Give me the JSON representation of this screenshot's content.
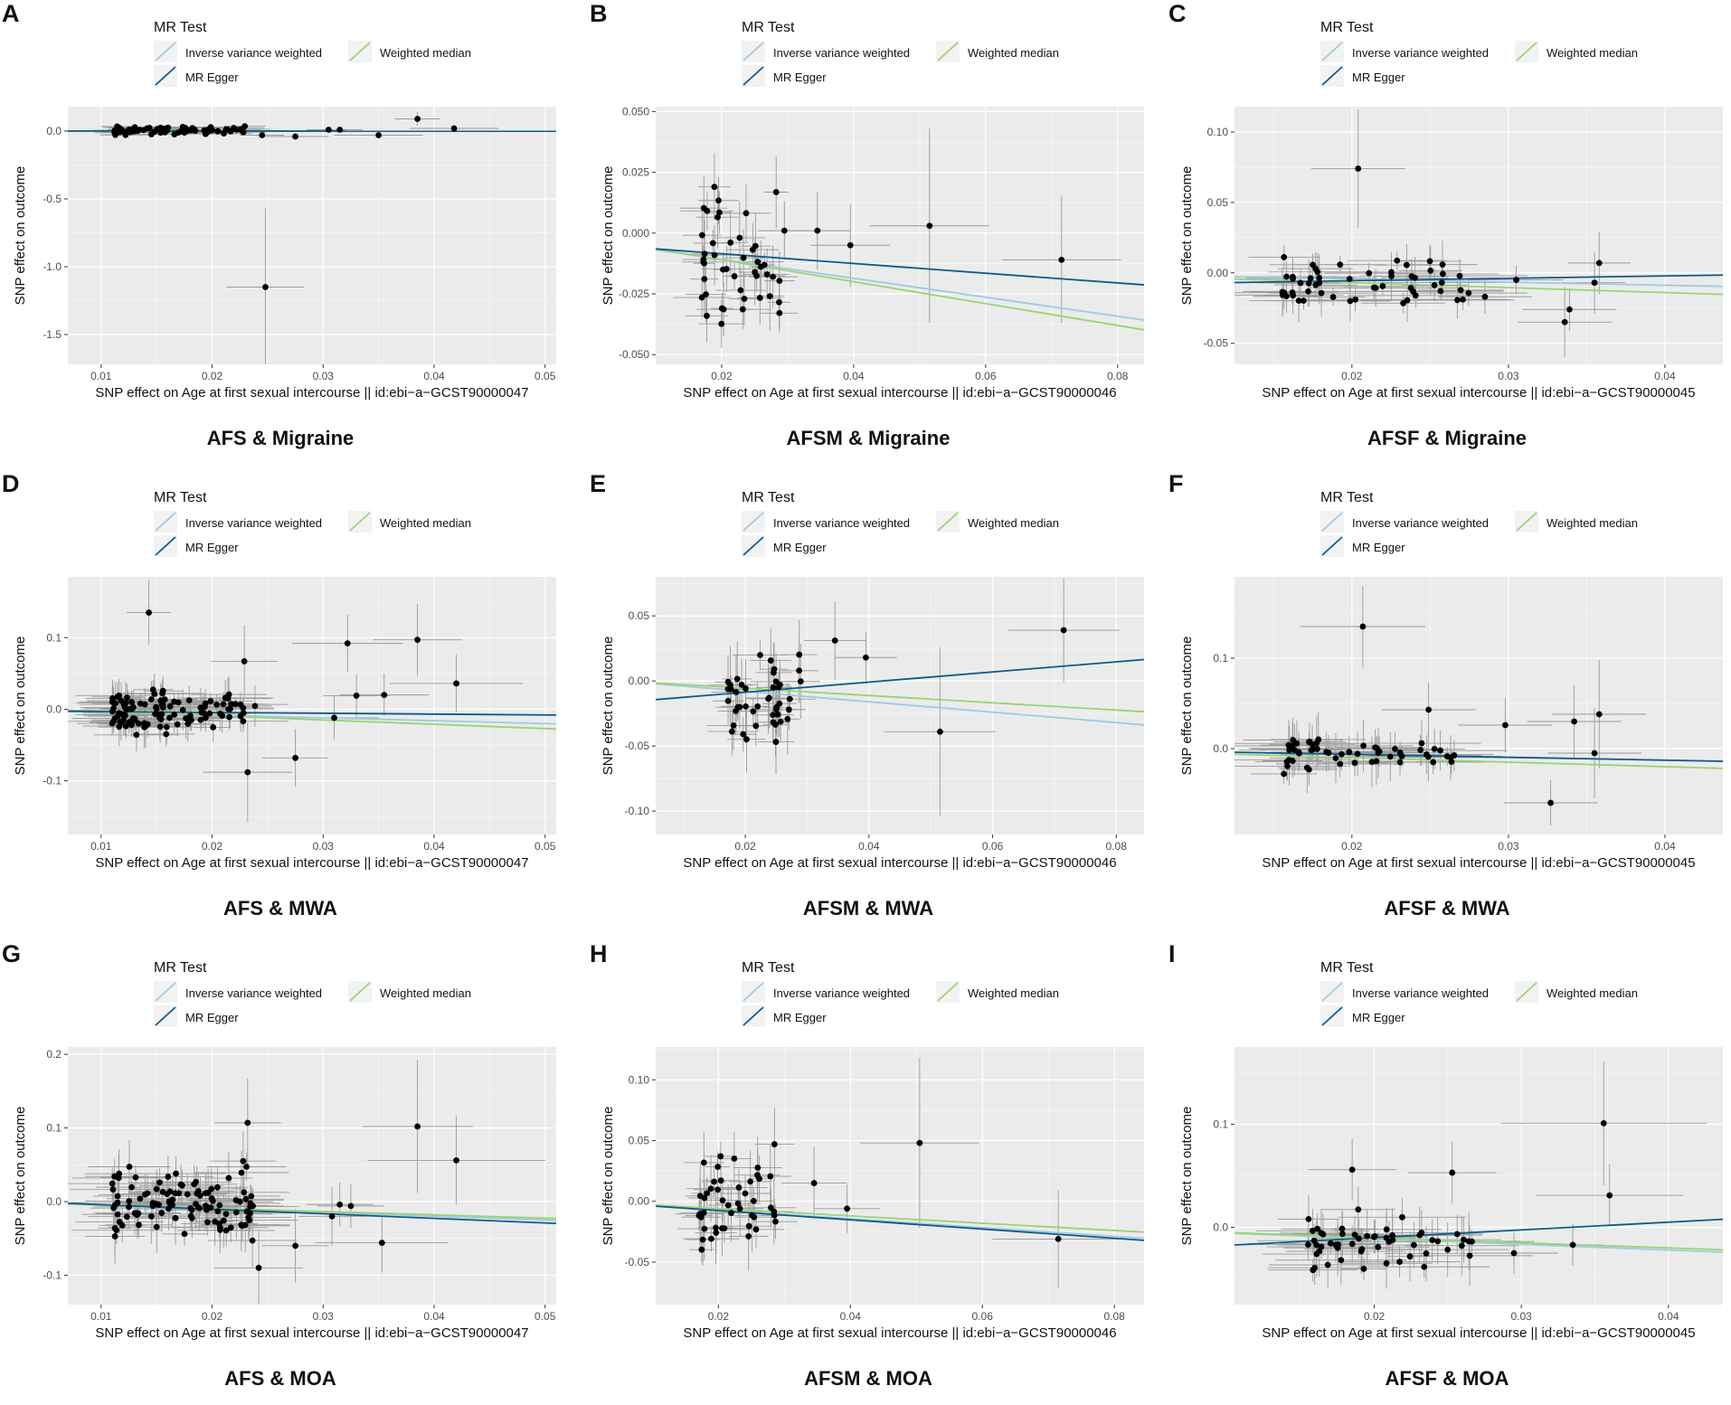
{
  "legend": {
    "title": "MR Test",
    "items": [
      {
        "label": "Inverse variance weighted",
        "color": "#9ecae1"
      },
      {
        "label": "Weighted median",
        "color": "#9ad372"
      },
      {
        "label": "MR Egger",
        "color": "#0e5a8a"
      }
    ]
  },
  "ylabel": "SNP effect on outcome",
  "colors": {
    "panel_bg": "#ebebeb",
    "grid": "#ffffff",
    "point": "#000000",
    "errorbar": "#9a9a9a"
  },
  "chart_data": [
    {
      "type": "scatter",
      "letter": "A",
      "caption": "AFS & Migraine",
      "xlabel": "SNP effect on Age at first sexual intercourse || id:ebi−a−GCST90000047",
      "xlim": [
        0.007,
        0.051
      ],
      "ylim": [
        -1.72,
        0.18
      ],
      "xticks": [
        0.01,
        0.02,
        0.03,
        0.04,
        0.05
      ],
      "xtick_labels": [
        "0.01",
        "0.02",
        "0.03",
        "0.04",
        "0.05"
      ],
      "yticks": [
        0.0,
        -0.5,
        -1.0,
        -1.5
      ],
      "ytick_labels": [
        "0.0",
        "-0.5",
        "-1.0",
        "-1.5"
      ],
      "lines": {
        "ivw": [
          0.0,
          -0.02
        ],
        "median": [
          0.0,
          -0.02
        ],
        "egger": [
          0.001,
          -0.03
        ]
      },
      "seed": 11,
      "cluster_n": 75,
      "cluster_x": [
        0.011,
        0.023
      ],
      "cluster_y": [
        -0.03,
        0.04
      ],
      "cluster_xerr": 0.002,
      "cluster_yerr": 0.02,
      "points": [
        {
          "x": 0.0248,
          "y": -1.15,
          "xe": 0.0035,
          "ye": 0.58
        },
        {
          "x": 0.0385,
          "y": 0.09,
          "xe": 0.002,
          "ye": 0.05
        },
        {
          "x": 0.0418,
          "y": 0.02,
          "xe": 0.004,
          "ye": 0.02
        },
        {
          "x": 0.035,
          "y": -0.03,
          "xe": 0.004,
          "ye": 0.02
        },
        {
          "x": 0.0315,
          "y": 0.01,
          "xe": 0.002,
          "ye": 0.02
        },
        {
          "x": 0.0305,
          "y": 0.01,
          "xe": 0.002,
          "ye": 0.02
        },
        {
          "x": 0.0275,
          "y": -0.04,
          "xe": 0.003,
          "ye": 0.02
        },
        {
          "x": 0.0245,
          "y": -0.03,
          "xe": 0.002,
          "ye": 0.02
        }
      ]
    },
    {
      "type": "scatter",
      "letter": "B",
      "caption": "AFSM & Migraine",
      "xlabel": "SNP effect on Age at first sexual intercourse || id:ebi−a−GCST90000046",
      "xlim": [
        0.01,
        0.084
      ],
      "ylim": [
        -0.054,
        0.052
      ],
      "xticks": [
        0.02,
        0.04,
        0.06,
        0.08
      ],
      "xtick_labels": [
        "0.02",
        "0.04",
        "0.06",
        "0.08"
      ],
      "yticks": [
        0.05,
        0.025,
        0.0,
        -0.025,
        -0.05
      ],
      "ytick_labels": [
        "0.050",
        "0.025",
        "0.000",
        "-0.025",
        "-0.050"
      ],
      "lines": {
        "ivw": [
          -0.003,
          -0.39
        ],
        "median": [
          -0.002,
          -0.45
        ],
        "egger": [
          -0.0045,
          -0.2
        ]
      },
      "seed": 22,
      "cluster_n": 45,
      "cluster_x": [
        0.017,
        0.029
      ],
      "cluster_y": [
        -0.04,
        0.022
      ],
      "cluster_xerr": 0.003,
      "cluster_yerr": 0.01,
      "points": [
        {
          "x": 0.0345,
          "y": 0.001,
          "xe": 0.005,
          "ye": 0.016
        },
        {
          "x": 0.0395,
          "y": -0.005,
          "xe": 0.006,
          "ye": 0.017
        },
        {
          "x": 0.0515,
          "y": 0.003,
          "xe": 0.009,
          "ye": 0.04
        },
        {
          "x": 0.0715,
          "y": -0.011,
          "xe": 0.009,
          "ye": 0.026
        },
        {
          "x": 0.0295,
          "y": 0.001,
          "xe": 0.004,
          "ye": 0.012
        }
      ]
    },
    {
      "type": "scatter",
      "letter": "C",
      "caption": "AFSF & Migraine",
      "xlabel": "SNP effect on Age at first sexual intercourse || id:ebi−a−GCST90000045",
      "xlim": [
        0.0125,
        0.0437
      ],
      "ylim": [
        -0.065,
        0.118
      ],
      "xticks": [
        0.02,
        0.03,
        0.04
      ],
      "xtick_labels": [
        "0.02",
        "0.03",
        "0.04"
      ],
      "yticks": [
        0.1,
        0.05,
        0.0,
        -0.05
      ],
      "ytick_labels": [
        "0.10",
        "0.05",
        "0.00",
        "-0.05"
      ],
      "lines": {
        "ivw": [
          0.0,
          -0.22
        ],
        "median": [
          0.0,
          -0.35
        ],
        "egger": [
          -0.009,
          0.17
        ]
      },
      "seed": 33,
      "cluster_n": 55,
      "cluster_x": [
        0.0155,
        0.0275
      ],
      "cluster_y": [
        -0.028,
        0.015
      ],
      "cluster_xerr": 0.003,
      "cluster_yerr": 0.012,
      "points": [
        {
          "x": 0.0204,
          "y": 0.074,
          "xe": 0.003,
          "ye": 0.042
        },
        {
          "x": 0.0336,
          "y": -0.035,
          "xe": 0.003,
          "ye": 0.025
        },
        {
          "x": 0.0339,
          "y": -0.026,
          "xe": 0.003,
          "ye": 0.015
        },
        {
          "x": 0.0355,
          "y": -0.007,
          "xe": 0.002,
          "ye": 0.022
        },
        {
          "x": 0.0358,
          "y": 0.007,
          "xe": 0.002,
          "ye": 0.022
        },
        {
          "x": 0.0305,
          "y": -0.005,
          "xe": 0.003,
          "ye": 0.01
        },
        {
          "x": 0.0285,
          "y": -0.017,
          "xe": 0.003,
          "ye": 0.012
        }
      ]
    },
    {
      "type": "scatter",
      "letter": "D",
      "caption": "AFS & MWA",
      "xlabel": "SNP effect on Age at first sexual intercourse || id:ebi−a−GCST90000047",
      "xlim": [
        0.007,
        0.051
      ],
      "ylim": [
        -0.175,
        0.185
      ],
      "xticks": [
        0.01,
        0.02,
        0.03,
        0.04,
        0.05
      ],
      "xtick_labels": [
        "0.01",
        "0.02",
        "0.03",
        "0.04",
        "0.05"
      ],
      "yticks": [
        0.1,
        0.0,
        -0.1
      ],
      "ytick_labels": [
        "0.1",
        "0.0",
        "-0.1"
      ],
      "lines": {
        "ivw": [
          0.0,
          -0.4
        ],
        "median": [
          0.003,
          -0.6
        ],
        "egger": [
          -0.002,
          -0.12
        ]
      },
      "seed": 44,
      "cluster_n": 110,
      "cluster_x": [
        0.011,
        0.024
      ],
      "cluster_y": [
        -0.04,
        0.03
      ],
      "cluster_xerr": 0.003,
      "cluster_yerr": 0.02,
      "points": [
        {
          "x": 0.0143,
          "y": 0.135,
          "xe": 0.002,
          "ye": 0.045
        },
        {
          "x": 0.0322,
          "y": 0.092,
          "xe": 0.005,
          "ye": 0.04
        },
        {
          "x": 0.0385,
          "y": 0.097,
          "xe": 0.004,
          "ye": 0.05
        },
        {
          "x": 0.042,
          "y": 0.036,
          "xe": 0.006,
          "ye": 0.04
        },
        {
          "x": 0.0355,
          "y": 0.02,
          "xe": 0.004,
          "ye": 0.03
        },
        {
          "x": 0.033,
          "y": 0.019,
          "xe": 0.003,
          "ye": 0.03
        },
        {
          "x": 0.031,
          "y": -0.012,
          "xe": 0.004,
          "ye": 0.03
        },
        {
          "x": 0.0275,
          "y": -0.068,
          "xe": 0.003,
          "ye": 0.04
        },
        {
          "x": 0.0232,
          "y": -0.088,
          "xe": 0.004,
          "ye": 0.07
        },
        {
          "x": 0.0229,
          "y": 0.067,
          "xe": 0.003,
          "ye": 0.05
        }
      ]
    },
    {
      "type": "scatter",
      "letter": "E",
      "caption": "AFSM & MWA",
      "xlabel": "SNP effect on Age at first sexual intercourse || id:ebi−a−GCST90000046",
      "xlim": [
        0.0055,
        0.0845
      ],
      "ylim": [
        -0.118,
        0.08
      ],
      "xticks": [
        0.02,
        0.04,
        0.06,
        0.08
      ],
      "xtick_labels": [
        "0.02",
        "0.04",
        "0.06",
        "0.08"
      ],
      "yticks": [
        0.05,
        0.0,
        -0.05,
        -0.1
      ],
      "ytick_labels": [
        "0.05",
        "0.00",
        "-0.05",
        "-0.10"
      ],
      "lines": {
        "ivw": [
          0.0,
          -0.4
        ],
        "median": [
          0.0,
          -0.28
        ],
        "egger": [
          -0.0165,
          0.39
        ]
      },
      "seed": 55,
      "cluster_n": 45,
      "cluster_x": [
        0.017,
        0.029
      ],
      "cluster_y": [
        -0.05,
        0.03
      ],
      "cluster_xerr": 0.003,
      "cluster_yerr": 0.02,
      "points": [
        {
          "x": 0.0345,
          "y": 0.031,
          "xe": 0.005,
          "ye": 0.03
        },
        {
          "x": 0.0395,
          "y": 0.018,
          "xe": 0.005,
          "ye": 0.02
        },
        {
          "x": 0.0515,
          "y": -0.039,
          "xe": 0.009,
          "ye": 0.065
        },
        {
          "x": 0.0715,
          "y": 0.039,
          "xe": 0.009,
          "ye": 0.04
        }
      ]
    },
    {
      "type": "scatter",
      "letter": "F",
      "caption": "AFSF & MWA",
      "xlabel": "SNP effect on Age at first sexual intercourse || id:ebi−a−GCST90000045",
      "xlim": [
        0.0125,
        0.0437
      ],
      "ylim": [
        -0.095,
        0.19
      ],
      "xticks": [
        0.02,
        0.03,
        0.04
      ],
      "xtick_labels": [
        "0.02",
        "0.03",
        "0.04"
      ],
      "yticks": [
        0.1,
        0.0
      ],
      "ytick_labels": [
        "0.1",
        "0.0"
      ],
      "lines": {
        "ivw": [
          0.0,
          -0.32
        ],
        "median": [
          0.0,
          -0.5
        ],
        "egger": [
          0.0,
          -0.32
        ]
      },
      "seed": 66,
      "cluster_n": 55,
      "cluster_x": [
        0.0155,
        0.027
      ],
      "cluster_y": [
        -0.03,
        0.02
      ],
      "cluster_xerr": 0.003,
      "cluster_yerr": 0.02,
      "points": [
        {
          "x": 0.0207,
          "y": 0.135,
          "xe": 0.004,
          "ye": 0.045
        },
        {
          "x": 0.0358,
          "y": 0.038,
          "xe": 0.003,
          "ye": 0.06
        },
        {
          "x": 0.0342,
          "y": 0.03,
          "xe": 0.003,
          "ye": 0.04
        },
        {
          "x": 0.0355,
          "y": -0.005,
          "xe": 0.003,
          "ye": 0.05
        },
        {
          "x": 0.0327,
          "y": -0.06,
          "xe": 0.003,
          "ye": 0.025
        },
        {
          "x": 0.0298,
          "y": 0.026,
          "xe": 0.003,
          "ye": 0.03
        },
        {
          "x": 0.0249,
          "y": 0.043,
          "xe": 0.003,
          "ye": 0.03
        }
      ]
    },
    {
      "type": "scatter",
      "letter": "G",
      "caption": "AFS & MOA",
      "xlabel": "SNP effect on Age at first sexual intercourse || id:ebi−a−GCST90000047",
      "xlim": [
        0.007,
        0.051
      ],
      "ylim": [
        -0.14,
        0.21
      ],
      "xticks": [
        0.01,
        0.02,
        0.03,
        0.04,
        0.05
      ],
      "xtick_labels": [
        "0.01",
        "0.02",
        "0.03",
        "0.04",
        "0.05"
      ],
      "yticks": [
        0.2,
        0.1,
        0.0,
        -0.1
      ],
      "ytick_labels": [
        "0.2",
        "0.1",
        "0.0",
        "-0.1"
      ],
      "lines": {
        "ivw": [
          0.0,
          -0.5
        ],
        "median": [
          0.0,
          -0.45
        ],
        "egger": [
          0.002,
          -0.62
        ]
      },
      "seed": 77,
      "cluster_n": 110,
      "cluster_x": [
        0.011,
        0.024
      ],
      "cluster_y": [
        -0.06,
        0.05
      ],
      "cluster_xerr": 0.003,
      "cluster_yerr": 0.025,
      "points": [
        {
          "x": 0.0385,
          "y": 0.102,
          "xe": 0.005,
          "ye": 0.09
        },
        {
          "x": 0.042,
          "y": 0.056,
          "xe": 0.008,
          "ye": 0.06
        },
        {
          "x": 0.0353,
          "y": -0.056,
          "xe": 0.006,
          "ye": 0.04
        },
        {
          "x": 0.0325,
          "y": -0.006,
          "xe": 0.003,
          "ye": 0.03
        },
        {
          "x": 0.0315,
          "y": -0.004,
          "xe": 0.003,
          "ye": 0.03
        },
        {
          "x": 0.0308,
          "y": -0.02,
          "xe": 0.003,
          "ye": 0.04
        },
        {
          "x": 0.0275,
          "y": -0.06,
          "xe": 0.003,
          "ye": 0.05
        },
        {
          "x": 0.0242,
          "y": -0.09,
          "xe": 0.004,
          "ye": 0.05
        },
        {
          "x": 0.0232,
          "y": 0.107,
          "xe": 0.003,
          "ye": 0.06
        },
        {
          "x": 0.0228,
          "y": 0.055,
          "xe": 0.003,
          "ye": 0.04
        }
      ]
    },
    {
      "type": "scatter",
      "letter": "H",
      "caption": "AFSM & MOA",
      "xlabel": "SNP effect on Age at first sexual intercourse || id:ebi−a−GCST90000046",
      "xlim": [
        0.0105,
        0.0845
      ],
      "ylim": [
        -0.085,
        0.127
      ],
      "xticks": [
        0.02,
        0.04,
        0.06,
        0.08
      ],
      "xtick_labels": [
        "0.02",
        "0.04",
        "0.06",
        "0.08"
      ],
      "yticks": [
        0.1,
        0.05,
        0.0,
        -0.05
      ],
      "ytick_labels": [
        "0.10",
        "0.05",
        "0.00",
        "-0.05"
      ],
      "lines": {
        "ivw": [
          0.0,
          -0.36
        ],
        "median": [
          0.0,
          -0.3
        ],
        "egger": [
          0.0,
          -0.38
        ]
      },
      "seed": 88,
      "cluster_n": 45,
      "cluster_x": [
        0.017,
        0.029
      ],
      "cluster_y": [
        -0.045,
        0.04
      ],
      "cluster_xerr": 0.003,
      "cluster_yerr": 0.02,
      "points": [
        {
          "x": 0.0505,
          "y": 0.048,
          "xe": 0.009,
          "ye": 0.07
        },
        {
          "x": 0.0715,
          "y": -0.031,
          "xe": 0.01,
          "ye": 0.04
        },
        {
          "x": 0.0345,
          "y": 0.015,
          "xe": 0.005,
          "ye": 0.03
        },
        {
          "x": 0.0395,
          "y": -0.006,
          "xe": 0.005,
          "ye": 0.02
        },
        {
          "x": 0.0285,
          "y": 0.047,
          "xe": 0.003,
          "ye": 0.03
        }
      ]
    },
    {
      "type": "scatter",
      "letter": "I",
      "caption": "AFSF & MOA",
      "xlabel": "SNP effect on Age at first sexual intercourse || id:ebi−a−GCST90000045",
      "xlim": [
        0.0105,
        0.0437
      ],
      "ylim": [
        -0.075,
        0.175
      ],
      "xticks": [
        0.02,
        0.03,
        0.04
      ],
      "xtick_labels": [
        "0.02",
        "0.03",
        "0.04"
      ],
      "yticks": [
        0.1,
        0.0
      ],
      "ytick_labels": [
        "0.1",
        "0.0"
      ],
      "lines": {
        "ivw": [
          0.0,
          -0.55
        ],
        "median": [
          0.0,
          -0.5
        ],
        "egger": [
          -0.025,
          0.75
        ]
      },
      "seed": 99,
      "cluster_n": 55,
      "cluster_x": [
        0.0155,
        0.027
      ],
      "cluster_y": [
        -0.045,
        0.02
      ],
      "cluster_xerr": 0.003,
      "cluster_yerr": 0.02,
      "points": [
        {
          "x": 0.0356,
          "y": 0.101,
          "xe": 0.007,
          "ye": 0.06
        },
        {
          "x": 0.036,
          "y": 0.031,
          "xe": 0.005,
          "ye": 0.03
        },
        {
          "x": 0.0253,
          "y": 0.053,
          "xe": 0.003,
          "ye": 0.03
        },
        {
          "x": 0.0185,
          "y": 0.056,
          "xe": 0.003,
          "ye": 0.03
        },
        {
          "x": 0.0295,
          "y": -0.025,
          "xe": 0.003,
          "ye": 0.02
        },
        {
          "x": 0.0335,
          "y": -0.017,
          "xe": 0.002,
          "ye": 0.02
        }
      ]
    }
  ]
}
